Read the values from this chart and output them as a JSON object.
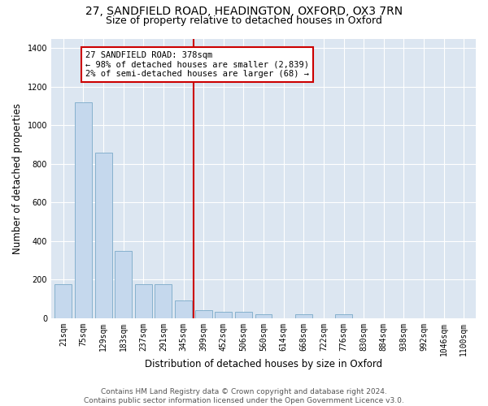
{
  "title_line1": "27, SANDFIELD ROAD, HEADINGTON, OXFORD, OX3 7RN",
  "title_line2": "Size of property relative to detached houses in Oxford",
  "xlabel": "Distribution of detached houses by size in Oxford",
  "ylabel": "Number of detached properties",
  "bar_labels": [
    "21sqm",
    "75sqm",
    "129sqm",
    "183sqm",
    "237sqm",
    "291sqm",
    "345sqm",
    "399sqm",
    "452sqm",
    "506sqm",
    "560sqm",
    "614sqm",
    "668sqm",
    "722sqm",
    "776sqm",
    "830sqm",
    "884sqm",
    "938sqm",
    "992sqm",
    "1046sqm",
    "1100sqm"
  ],
  "bar_values": [
    175,
    1120,
    860,
    350,
    175,
    175,
    90,
    40,
    35,
    35,
    22,
    0,
    22,
    0,
    22,
    0,
    0,
    0,
    0,
    0,
    0
  ],
  "bar_color": "#c5d8ed",
  "bar_edge_color": "#7aaac8",
  "property_line_color": "#cc0000",
  "annotation_text": "27 SANDFIELD ROAD: 378sqm\n← 98% of detached houses are smaller (2,839)\n2% of semi-detached houses are larger (68) →",
  "annotation_box_color": "#cc0000",
  "ylim": [
    0,
    1450
  ],
  "yticks": [
    0,
    200,
    400,
    600,
    800,
    1000,
    1200,
    1400
  ],
  "footer_text": "Contains HM Land Registry data © Crown copyright and database right 2024.\nContains public sector information licensed under the Open Government Licence v3.0.",
  "plot_bg_color": "#dce6f1",
  "grid_color": "#ffffff",
  "title_fontsize": 10,
  "subtitle_fontsize": 9,
  "axis_label_fontsize": 8.5,
  "tick_label_fontsize": 7,
  "annotation_fontsize": 7.5,
  "footer_fontsize": 6.5
}
